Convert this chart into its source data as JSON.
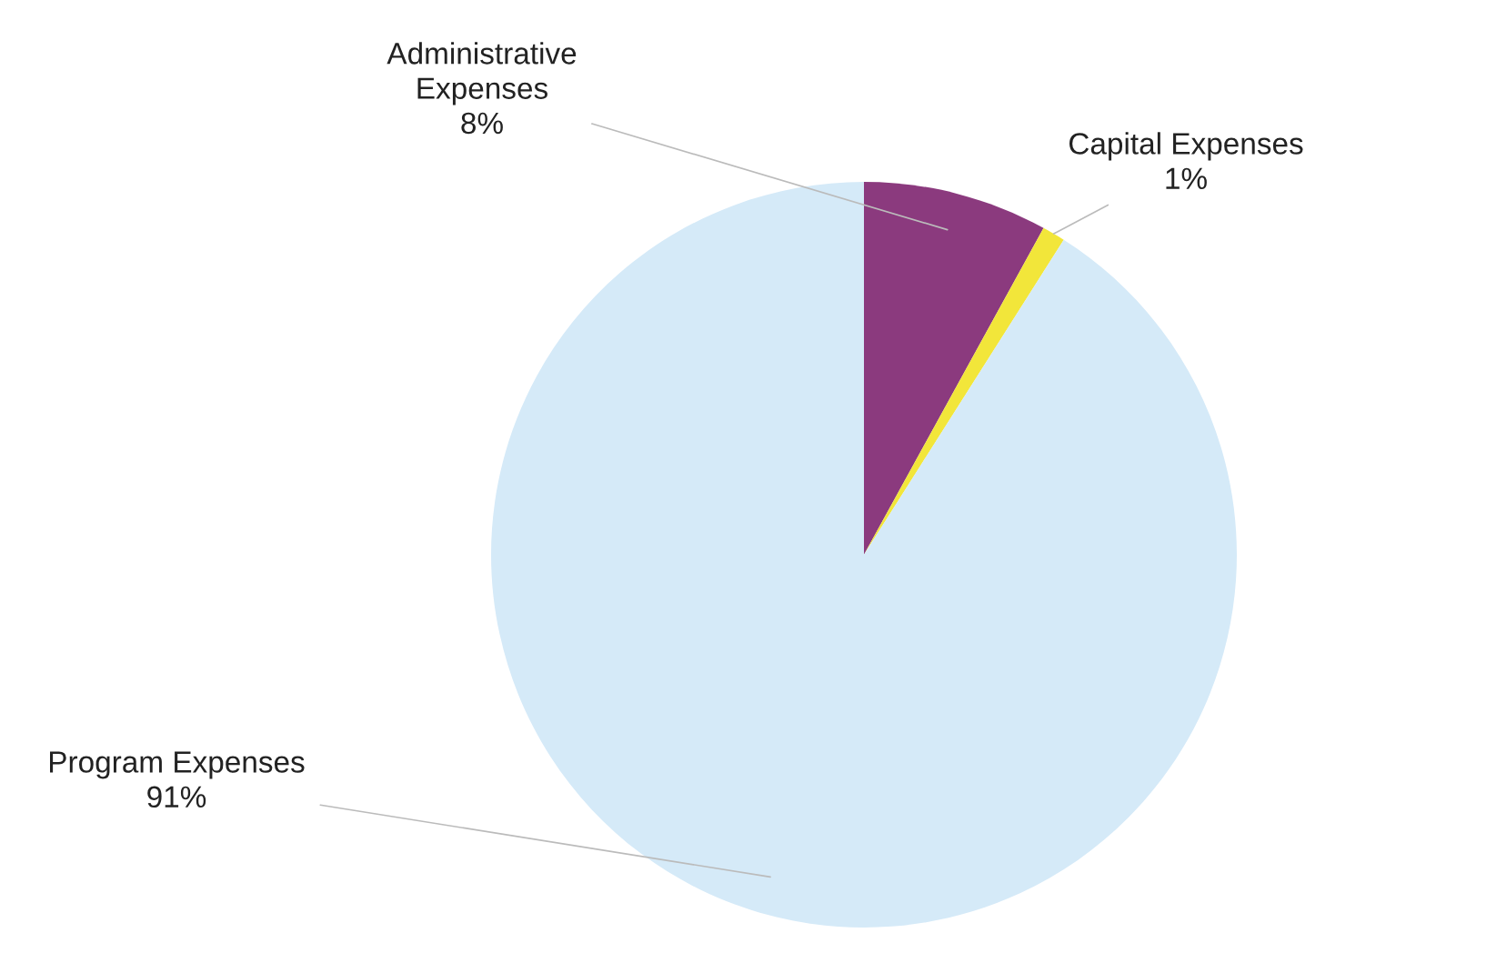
{
  "chart_data": {
    "type": "pie",
    "categories": [
      "Administrative\nExpenses",
      "Capital Expenses",
      "Program Expenses"
    ],
    "values": [
      8,
      1,
      91
    ],
    "colors": [
      "#8b3a7e",
      "#f2e63a",
      "#d5eaf8"
    ],
    "value_labels": [
      "8%",
      "1%",
      "91%"
    ]
  }
}
